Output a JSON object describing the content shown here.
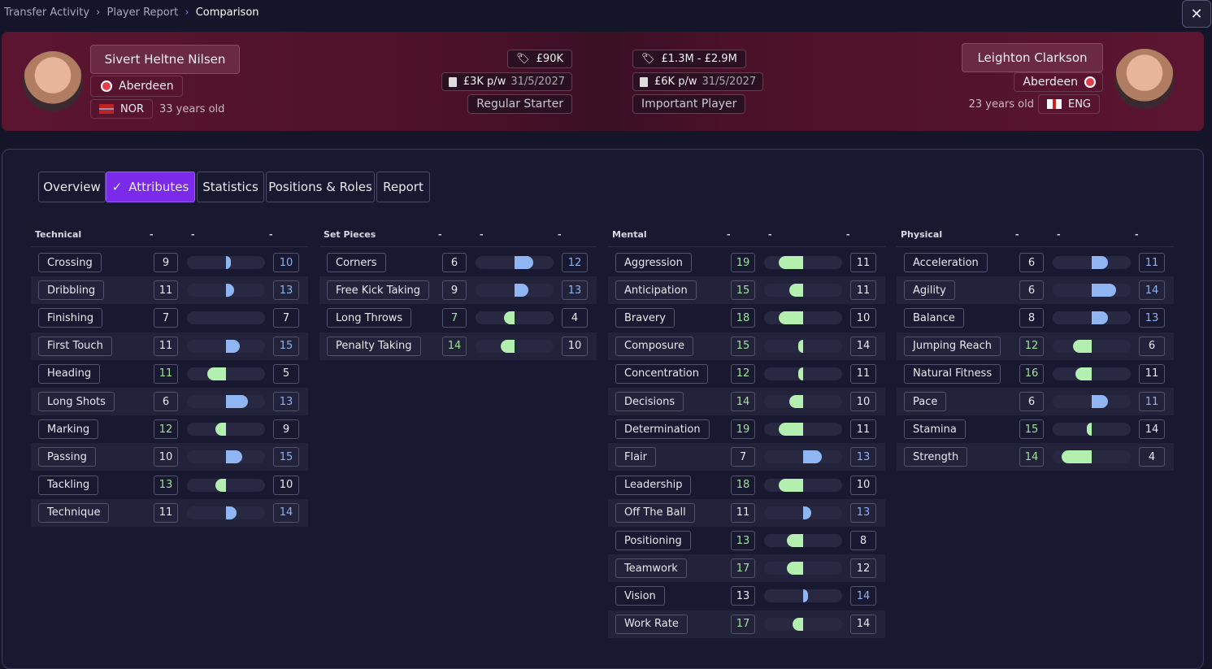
{
  "breadcrumb": [
    "Transfer Activity",
    "Player Report",
    "Comparison"
  ],
  "players": [
    {
      "name": "Sivert Heltne Nilsen",
      "club": "Aberdeen",
      "nationality": "NOR",
      "age": "33 years old",
      "value": "£90K",
      "wage": "£3K p/w",
      "contract_expiry": "31/5/2027",
      "squad_status": "Regular Starter"
    },
    {
      "name": "Leighton Clarkson",
      "club": "Aberdeen",
      "nationality": "ENG",
      "age": "23 years old",
      "value": "£1.3M - £2.9M",
      "wage": "£6K p/w",
      "contract_expiry": "31/5/2027",
      "squad_status": "Important Player"
    }
  ],
  "tabs": [
    "Overview",
    "Attributes",
    "Statistics",
    "Positions & Roles",
    "Report"
  ],
  "active_tab": 1,
  "sections": [
    {
      "title": "Technical",
      "columns": [
        "-",
        "-",
        "-"
      ],
      "rows": [
        {
          "name": "Crossing",
          "left": 9,
          "right": 10
        },
        {
          "name": "Dribbling",
          "left": 11,
          "right": 13
        },
        {
          "name": "Finishing",
          "left": 7,
          "right": 7
        },
        {
          "name": "First Touch",
          "left": 11,
          "right": 15
        },
        {
          "name": "Heading",
          "left": 11,
          "right": 5
        },
        {
          "name": "Long Shots",
          "left": 6,
          "right": 13
        },
        {
          "name": "Marking",
          "left": 12,
          "right": 9
        },
        {
          "name": "Passing",
          "left": 10,
          "right": 15
        },
        {
          "name": "Tackling",
          "left": 13,
          "right": 10
        },
        {
          "name": "Technique",
          "left": 11,
          "right": 14
        }
      ]
    },
    {
      "title": "Set Pieces",
      "columns": [
        "-",
        "-",
        "-"
      ],
      "rows": [
        {
          "name": "Corners",
          "left": 6,
          "right": 12
        },
        {
          "name": "Free Kick Taking",
          "left": 9,
          "right": 13
        },
        {
          "name": "Long Throws",
          "left": 7,
          "right": 4
        },
        {
          "name": "Penalty Taking",
          "left": 14,
          "right": 10
        }
      ]
    },
    {
      "title": "Mental",
      "columns": [
        "-",
        "-",
        "-"
      ],
      "rows": [
        {
          "name": "Aggression",
          "left": 19,
          "right": 11
        },
        {
          "name": "Anticipation",
          "left": 15,
          "right": 11
        },
        {
          "name": "Bravery",
          "left": 18,
          "right": 10
        },
        {
          "name": "Composure",
          "left": 15,
          "right": 14
        },
        {
          "name": "Concentration",
          "left": 12,
          "right": 11
        },
        {
          "name": "Decisions",
          "left": 14,
          "right": 10
        },
        {
          "name": "Determination",
          "left": 19,
          "right": 11
        },
        {
          "name": "Flair",
          "left": 7,
          "right": 13
        },
        {
          "name": "Leadership",
          "left": 18,
          "right": 10
        },
        {
          "name": "Off The Ball",
          "left": 11,
          "right": 13
        },
        {
          "name": "Positioning",
          "left": 13,
          "right": 8
        },
        {
          "name": "Teamwork",
          "left": 17,
          "right": 12
        },
        {
          "name": "Vision",
          "left": 13,
          "right": 14
        },
        {
          "name": "Work Rate",
          "left": 17,
          "right": 14
        }
      ]
    },
    {
      "title": "Physical",
      "columns": [
        "-",
        "-",
        "-"
      ],
      "rows": [
        {
          "name": "Acceleration",
          "left": 6,
          "right": 11
        },
        {
          "name": "Agility",
          "left": 6,
          "right": 14
        },
        {
          "name": "Balance",
          "left": 8,
          "right": 13
        },
        {
          "name": "Jumping Reach",
          "left": 12,
          "right": 6
        },
        {
          "name": "Natural Fitness",
          "left": 16,
          "right": 11
        },
        {
          "name": "Pace",
          "left": 6,
          "right": 11
        },
        {
          "name": "Stamina",
          "left": 15,
          "right": 14
        },
        {
          "name": "Strength",
          "left": 14,
          "right": 4
        }
      ]
    }
  ]
}
